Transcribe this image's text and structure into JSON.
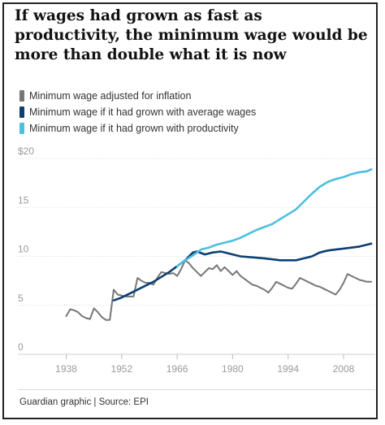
{
  "title": "If wages had grown as fast as productivity, the minimum wage would be more than double what it is now",
  "source": "Guardian graphic | Source: EPI",
  "chart_data": {
    "type": "line",
    "ylim": [
      0,
      20
    ],
    "xlim": [
      1934,
      2016
    ],
    "y_ticks": [
      0,
      5,
      10,
      15,
      20
    ],
    "y_tick_labels": [
      "0",
      "5",
      "10",
      "15",
      "$20"
    ],
    "x_ticks": [
      1938,
      1952,
      1966,
      1980,
      1994,
      2008
    ],
    "grid": "horizontal dotted",
    "legend_position": "top-left",
    "series": [
      {
        "name": "Minimum wage adjusted for inflation",
        "color": "#777777",
        "x": [
          1938,
          1939,
          1940,
          1941,
          1942,
          1943,
          1944,
          1945,
          1946,
          1947,
          1948,
          1949,
          1950,
          1951,
          1952,
          1953,
          1954,
          1955,
          1956,
          1957,
          1958,
          1959,
          1960,
          1961,
          1962,
          1963,
          1964,
          1965,
          1966,
          1967,
          1968,
          1969,
          1970,
          1971,
          1972,
          1973,
          1974,
          1975,
          1976,
          1977,
          1978,
          1979,
          1980,
          1981,
          1982,
          1983,
          1984,
          1985,
          1986,
          1987,
          1988,
          1989,
          1990,
          1991,
          1992,
          1993,
          1994,
          1995,
          1996,
          1997,
          1998,
          1999,
          2000,
          2001,
          2002,
          2003,
          2004,
          2005,
          2006,
          2007,
          2008,
          2009,
          2010,
          2011,
          2012,
          2013,
          2014,
          2015
        ],
        "values": [
          3.9,
          4.6,
          4.5,
          4.3,
          3.9,
          3.7,
          3.6,
          4.7,
          4.3,
          3.8,
          3.5,
          3.5,
          6.6,
          6.1,
          6.0,
          5.9,
          5.9,
          5.9,
          7.8,
          7.5,
          7.3,
          7.3,
          7.1,
          7.8,
          8.4,
          8.3,
          8.2,
          8.3,
          8.0,
          8.7,
          9.6,
          9.3,
          8.8,
          8.4,
          8.0,
          8.4,
          8.8,
          8.7,
          9.1,
          8.5,
          8.9,
          8.5,
          8.1,
          8.5,
          8.0,
          7.7,
          7.4,
          7.1,
          7.0,
          6.8,
          6.6,
          6.3,
          6.8,
          7.4,
          7.2,
          7.0,
          6.8,
          6.7,
          7.2,
          7.8,
          7.6,
          7.4,
          7.2,
          7.0,
          6.9,
          6.7,
          6.5,
          6.3,
          6.1,
          6.6,
          7.3,
          8.2,
          8.0,
          7.8,
          7.6,
          7.5,
          7.4,
          7.4
        ]
      },
      {
        "name": "Minimum wage if it had grown with average wages",
        "color": "#0c3f73",
        "x": [
          1950,
          1952,
          1955,
          1958,
          1960,
          1962,
          1964,
          1966,
          1968,
          1970,
          1971,
          1973,
          1975,
          1977,
          1979,
          1980,
          1982,
          1985,
          1988,
          1990,
          1992,
          1994,
          1996,
          1998,
          2000,
          2002,
          2004,
          2006,
          2008,
          2010,
          2012,
          2014,
          2015
        ],
        "values": [
          5.5,
          5.8,
          6.4,
          7.0,
          7.4,
          7.9,
          8.4,
          9.0,
          9.6,
          10.4,
          10.5,
          10.2,
          10.4,
          10.5,
          10.3,
          10.2,
          10.0,
          9.9,
          9.8,
          9.7,
          9.6,
          9.6,
          9.6,
          9.8,
          10.0,
          10.4,
          10.6,
          10.7,
          10.8,
          10.9,
          11.0,
          11.2,
          11.3
        ]
      },
      {
        "name": "Minimum wage if it had grown with productivity",
        "color": "#4cbfe0",
        "x": [
          1966,
          1968,
          1970,
          1972,
          1974,
          1976,
          1978,
          1980,
          1982,
          1984,
          1986,
          1988,
          1990,
          1992,
          1994,
          1996,
          1998,
          2000,
          2002,
          2004,
          2006,
          2008,
          2010,
          2012,
          2014,
          2015
        ],
        "values": [
          9.0,
          9.6,
          10.1,
          10.7,
          10.9,
          11.2,
          11.4,
          11.6,
          11.9,
          12.3,
          12.7,
          13.0,
          13.3,
          13.8,
          14.3,
          14.8,
          15.6,
          16.4,
          17.1,
          17.6,
          17.9,
          18.1,
          18.4,
          18.6,
          18.7,
          18.9
        ]
      }
    ]
  }
}
